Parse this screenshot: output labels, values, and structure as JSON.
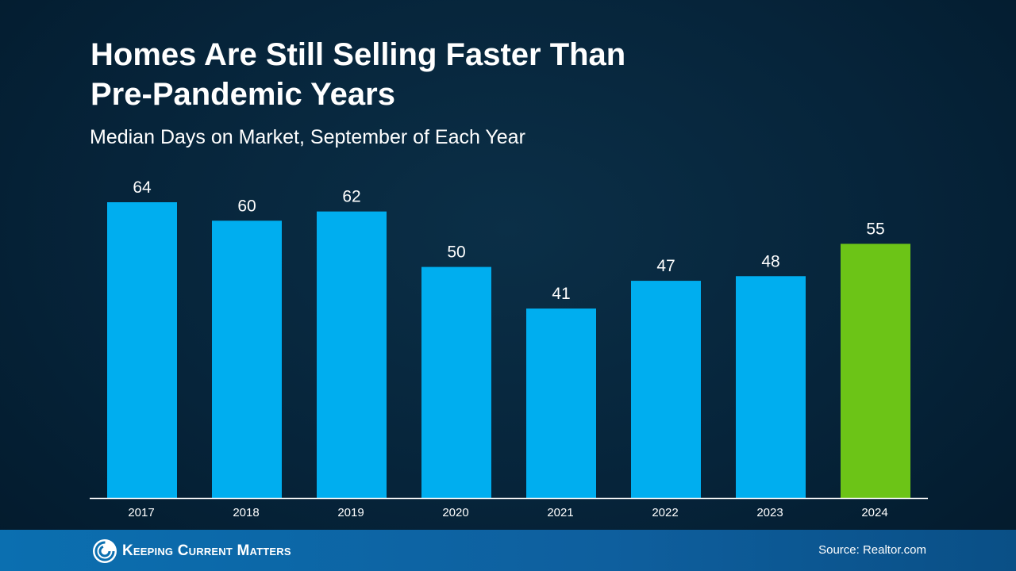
{
  "title_lines": [
    "Homes Are Still Selling Faster Than",
    "Pre-Pandemic Years"
  ],
  "subtitle": "Median Days on Market, September of Each Year",
  "chart_data": {
    "type": "bar",
    "title": "Homes Are Still Selling Faster Than Pre-Pandemic Years",
    "subtitle": "Median Days on Market, September of Each Year",
    "categories": [
      "2017",
      "2018",
      "2019",
      "2020",
      "2021",
      "2022",
      "2023",
      "2024"
    ],
    "values": [
      64,
      60,
      62,
      50,
      41,
      47,
      48,
      55
    ],
    "data_labels": [
      "64",
      "60",
      "62",
      "50",
      "41",
      "47",
      "48",
      "55"
    ],
    "colors": [
      "#00aeef",
      "#00aeef",
      "#00aeef",
      "#00aeef",
      "#00aeef",
      "#00aeef",
      "#00aeef",
      "#6cc417"
    ],
    "ylim": [
      0,
      64
    ],
    "grid": false,
    "legend": "none"
  },
  "footer": {
    "logo_text": "Keeping Current Matters",
    "source": "Source: Realtor.com"
  }
}
